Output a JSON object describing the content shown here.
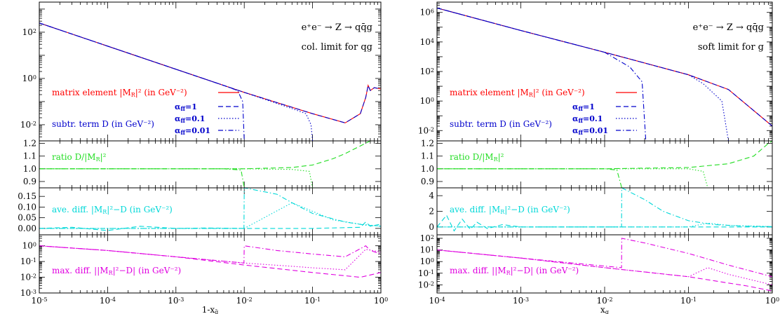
{
  "panels": [
    {
      "id": "left",
      "xlabel": "1-x",
      "xlabel_sub": "q̄",
      "xlim": [
        1e-05,
        1
      ],
      "x_ticks": [
        {
          "v": 1e-05,
          "l": "10",
          "e": "-5"
        },
        {
          "v": 0.0001,
          "l": "10",
          "e": "-4"
        },
        {
          "v": 0.001,
          "l": "10",
          "e": "-3"
        },
        {
          "v": 0.01,
          "l": "10",
          "e": "-2"
        },
        {
          "v": 0.1,
          "l": "10",
          "e": "-1"
        },
        {
          "v": 1,
          "l": "10",
          "e": "0"
        }
      ],
      "process": "e⁺e⁻ → Z → qq̄g",
      "limit": "col. limit for qg",
      "show_legend": true
    },
    {
      "id": "right",
      "xlabel": "x",
      "xlabel_sub": "g",
      "xlim": [
        0.0001,
        1
      ],
      "x_ticks": [
        {
          "v": 0.0001,
          "l": "10",
          "e": "-4"
        },
        {
          "v": 0.001,
          "l": "10",
          "e": "-3"
        },
        {
          "v": 0.01,
          "l": "10",
          "e": "-2"
        },
        {
          "v": 0.1,
          "l": "10",
          "e": "-1"
        },
        {
          "v": 1,
          "l": "10",
          "e": "0"
        }
      ],
      "process": "e⁺e⁻ → Z → qq̄g",
      "limit": "soft limit for g",
      "show_legend": true
    }
  ],
  "legend": {
    "matrix_element": "matrix element |M",
    "matrix_element_tail": "|² (in GeV⁻²)",
    "subtr_term": "subtr. term D (in GeV⁻²)",
    "alpha1": "=1",
    "alpha01": "=0.1",
    "alpha001": "=0.01",
    "ratio": "ratio D/|M",
    "ratio_tail": "|²",
    "avediff": "ave. diff. |M",
    "avediff_tail": "|²−D (in GeV⁻²)",
    "maxdiff": "max. diff. ||M",
    "maxdiff_tail": "|²−D| (in GeV⁻²)"
  },
  "colors": {
    "matrix": "#ff0000",
    "subtr": "#0000cc",
    "ratio": "#22dd22",
    "avediff": "#00d8d8",
    "maxdiff": "#e000e0"
  },
  "chart_data": [
    {
      "type": "line",
      "panel": "left-top",
      "yscale": "log",
      "ylim": [
        0.002,
        2000
      ],
      "y_ticks": [
        {
          "v": 0.01,
          "e": "-2"
        },
        {
          "v": 1,
          "e": "0"
        },
        {
          "v": 100,
          "e": "2"
        }
      ],
      "series": [
        {
          "name": "matrix element",
          "style": "solid",
          "color": "#ff0000",
          "x": [
            1e-05,
            0.0001,
            0.001,
            0.01,
            0.1,
            0.3,
            0.5,
            0.6,
            0.65,
            0.7,
            0.8,
            1
          ],
          "y": [
            250,
            25,
            2.5,
            0.25,
            0.03,
            0.012,
            0.03,
            0.15,
            0.5,
            0.3,
            0.4,
            0.35
          ]
        },
        {
          "name": "α=1",
          "style": "dash",
          "color": "#0000cc",
          "x": [
            1e-05,
            0.0001,
            0.001,
            0.01,
            0.1,
            0.3,
            0.5,
            0.6,
            0.65,
            0.7,
            0.8,
            1
          ],
          "y": [
            250,
            25,
            2.5,
            0.25,
            0.03,
            0.012,
            0.03,
            0.15,
            0.5,
            0.3,
            0.4,
            0.35
          ]
        },
        {
          "name": "α=0.1",
          "style": "dot",
          "color": "#0000cc",
          "x": [
            1e-05,
            0.0001,
            0.001,
            0.01,
            0.05,
            0.08,
            0.095,
            0.1
          ],
          "y": [
            250,
            25,
            2.5,
            0.25,
            0.05,
            0.03,
            0.01,
            0.002
          ]
        },
        {
          "name": "α=0.01",
          "style": "dashdot",
          "color": "#0000cc",
          "x": [
            1e-05,
            0.0001,
            0.001,
            0.005,
            0.008,
            0.0095,
            0.01
          ],
          "y": [
            250,
            25,
            2.5,
            0.5,
            0.3,
            0.1,
            0.002
          ]
        }
      ]
    },
    {
      "type": "line",
      "panel": "left-ratio",
      "ylim": [
        0.85,
        1.22
      ],
      "y_ticks": [
        {
          "v": 0.9,
          "l": "0.9"
        },
        {
          "v": 1.0,
          "l": "1.0"
        },
        {
          "v": 1.1,
          "l": "1.1"
        },
        {
          "v": 1.2,
          "l": "1.2"
        }
      ],
      "series": [
        {
          "name": "α=1",
          "style": "dash",
          "color": "#22dd22",
          "x": [
            1e-05,
            0.001,
            0.01,
            0.05,
            0.1,
            0.2,
            0.3,
            0.5,
            0.7,
            1
          ],
          "y": [
            1.0,
            1.0,
            1.0,
            1.01,
            1.03,
            1.08,
            1.12,
            1.18,
            1.22,
            1.22
          ]
        },
        {
          "name": "α=0.1",
          "style": "dot",
          "color": "#22dd22",
          "x": [
            1e-05,
            0.001,
            0.01,
            0.05,
            0.09,
            0.1
          ],
          "y": [
            1.0,
            1.0,
            1.0,
            0.995,
            0.98,
            0.85
          ]
        },
        {
          "name": "α=0.01",
          "style": "dashdot",
          "color": "#22dd22",
          "x": [
            1e-05,
            0.001,
            0.005,
            0.009,
            0.01
          ],
          "y": [
            1.0,
            1.0,
            1.0,
            0.99,
            0.85
          ]
        }
      ]
    },
    {
      "type": "line",
      "panel": "left-avediff",
      "ylim": [
        -0.03,
        0.19
      ],
      "y_ticks": [
        {
          "v": 0,
          "l": "0.00"
        },
        {
          "v": 0.05,
          "l": "0.05"
        },
        {
          "v": 0.1,
          "l": "0.10"
        },
        {
          "v": 0.15,
          "l": "0.15"
        }
      ],
      "series": [
        {
          "name": "α=1",
          "style": "dash",
          "color": "#00d8d8",
          "x": [
            1e-05,
            3e-05,
            0.0001,
            0.0003,
            0.001,
            0.003,
            0.01,
            0.1,
            0.5,
            0.6,
            0.7,
            1
          ],
          "y": [
            0,
            0.005,
            -0.01,
            0.01,
            0,
            0.002,
            0,
            0,
            0.005,
            0.03,
            0.01,
            0.02
          ]
        },
        {
          "name": "α=0.1",
          "style": "dot",
          "color": "#00d8d8",
          "x": [
            1e-05,
            0.001,
            0.01,
            0.05,
            0.1,
            0.2,
            0.5,
            1
          ],
          "y": [
            0,
            0,
            0,
            0.12,
            0.08,
            0.04,
            0.02,
            0.01
          ]
        },
        {
          "name": "α=0.01",
          "style": "dashdot",
          "color": "#00d8d8",
          "x": [
            1e-05,
            0.001,
            0.0099,
            0.01,
            0.03,
            0.05,
            0.1,
            0.3,
            0.6,
            1
          ],
          "y": [
            0,
            0,
            0,
            0.19,
            0.16,
            0.12,
            0.07,
            0.03,
            0.015,
            0.01
          ]
        }
      ]
    },
    {
      "type": "line",
      "panel": "left-maxdiff",
      "yscale": "log",
      "ylim": [
        0.001,
        5
      ],
      "y_ticks": [
        {
          "v": 0.001,
          "e": "-3"
        },
        {
          "v": 0.01,
          "e": "-2"
        },
        {
          "v": 0.1,
          "e": "-1"
        },
        {
          "v": 1,
          "e": "0"
        }
      ],
      "series": [
        {
          "name": "α=1",
          "style": "dash",
          "color": "#e000e0",
          "x": [
            1e-05,
            0.0001,
            0.001,
            0.01,
            0.1,
            0.5,
            1
          ],
          "y": [
            1.0,
            0.5,
            0.2,
            0.06,
            0.02,
            0.01,
            0.02
          ]
        },
        {
          "name": "α=0.1",
          "style": "dot",
          "color": "#e000e0",
          "x": [
            1e-05,
            0.0001,
            0.001,
            0.01,
            0.05,
            0.1,
            0.3,
            0.6,
            1
          ],
          "y": [
            1.0,
            0.5,
            0.2,
            0.08,
            0.05,
            0.04,
            0.03,
            0.6,
            0.4
          ]
        },
        {
          "name": "α=0.01",
          "style": "dashdot",
          "color": "#e000e0",
          "x": [
            1e-05,
            0.0001,
            0.001,
            0.0099,
            0.01,
            0.03,
            0.1,
            0.3,
            0.6,
            0.7,
            1
          ],
          "y": [
            1.0,
            0.5,
            0.2,
            0.08,
            1.0,
            0.5,
            0.3,
            0.2,
            1.0,
            0.5,
            0.3
          ]
        }
      ]
    },
    {
      "type": "line",
      "panel": "right-top",
      "yscale": "log",
      "ylim": [
        0.002,
        5000000
      ],
      "y_ticks": [
        {
          "v": 0.01,
          "e": "-2"
        },
        {
          "v": 1,
          "e": "0"
        },
        {
          "v": 100,
          "e": "2"
        },
        {
          "v": 10000,
          "e": "4"
        },
        {
          "v": 1000000,
          "e": "6"
        }
      ],
      "series": [
        {
          "name": "matrix element",
          "style": "solid",
          "color": "#ff0000",
          "x": [
            0.0001,
            0.001,
            0.01,
            0.1,
            0.3,
            1
          ],
          "y": [
            2000000,
            60000,
            2000,
            60,
            6,
            0.02
          ]
        },
        {
          "name": "α=1",
          "style": "dash",
          "color": "#0000cc",
          "x": [
            0.0001,
            0.001,
            0.01,
            0.1,
            0.3,
            1
          ],
          "y": [
            2000000,
            60000,
            2000,
            60,
            6,
            0.02
          ]
        },
        {
          "name": "α=0.1",
          "style": "dot",
          "color": "#0000cc",
          "x": [
            0.0001,
            0.001,
            0.01,
            0.1,
            0.15,
            0.25,
            0.3
          ],
          "y": [
            2000000,
            60000,
            2000,
            60,
            15,
            1,
            0.002
          ]
        },
        {
          "name": "α=0.01",
          "style": "dashdot",
          "color": "#0000cc",
          "x": [
            0.0001,
            0.001,
            0.01,
            0.02,
            0.028,
            0.031
          ],
          "y": [
            2000000,
            60000,
            2000,
            200,
            20,
            0.002
          ]
        }
      ]
    },
    {
      "type": "line",
      "panel": "right-ratio",
      "ylim": [
        0.85,
        1.22
      ],
      "y_ticks": [
        {
          "v": 0.9,
          "l": "0.9"
        },
        {
          "v": 1.0,
          "l": "1.0"
        },
        {
          "v": 1.1,
          "l": "1.1"
        },
        {
          "v": 1.2,
          "l": "1.2"
        }
      ],
      "series": [
        {
          "name": "α=1",
          "style": "dash",
          "color": "#22dd22",
          "x": [
            0.0001,
            0.001,
            0.01,
            0.1,
            0.3,
            0.6,
            0.9,
            1
          ],
          "y": [
            1.0,
            1.0,
            1.0,
            1.01,
            1.04,
            1.1,
            1.2,
            1.22
          ]
        },
        {
          "name": "α=0.1",
          "style": "dot",
          "color": "#22dd22",
          "x": [
            0.0001,
            0.001,
            0.01,
            0.1,
            0.15,
            0.17
          ],
          "y": [
            1.0,
            1.0,
            1.0,
            1.0,
            0.98,
            0.85
          ]
        },
        {
          "name": "α=0.01",
          "style": "dashdot",
          "color": "#22dd22",
          "x": [
            0.0001,
            0.001,
            0.01,
            0.014,
            0.016
          ],
          "y": [
            1.0,
            1.0,
            1.0,
            0.99,
            0.85
          ]
        }
      ]
    },
    {
      "type": "line",
      "panel": "right-avediff",
      "ylim": [
        -1,
        5
      ],
      "y_ticks": [
        {
          "v": 0,
          "l": "0"
        },
        {
          "v": 2,
          "l": "2"
        },
        {
          "v": 4,
          "l": "4"
        }
      ],
      "series": [
        {
          "name": "α=1",
          "style": "dash",
          "color": "#00d8d8",
          "x": [
            0.0001,
            0.00013,
            0.00016,
            0.0002,
            0.00025,
            0.0003,
            0.0004,
            0.0006,
            0.001,
            0.01,
            0.1,
            1
          ],
          "y": [
            0,
            1.5,
            -0.5,
            1,
            -0.3,
            0.6,
            -0.2,
            0.3,
            0,
            0,
            0,
            0
          ]
        },
        {
          "name": "α=0.1",
          "style": "dot",
          "color": "#00d8d8",
          "x": [
            0.0001,
            0.001,
            0.01,
            0.1,
            0.17,
            0.3,
            1
          ],
          "y": [
            0,
            0,
            0,
            0,
            0.5,
            0.2,
            0.05
          ]
        },
        {
          "name": "α=0.01",
          "style": "dashdot",
          "color": "#00d8d8",
          "x": [
            0.0001,
            0.001,
            0.0159,
            0.016,
            0.03,
            0.05,
            0.1,
            0.2,
            0.5,
            1
          ],
          "y": [
            0,
            0,
            0,
            5,
            3.5,
            2,
            0.8,
            0.3,
            0.1,
            0.05
          ]
        }
      ]
    },
    {
      "type": "line",
      "panel": "right-maxdiff",
      "yscale": "log",
      "ylim": [
        0.002,
        200
      ],
      "y_ticks": [
        {
          "v": 0.01,
          "e": "-2"
        },
        {
          "v": 0.1,
          "e": "-1"
        },
        {
          "v": 1,
          "e": "0"
        },
        {
          "v": 10,
          "e": "1"
        },
        {
          "v": 100,
          "e": "2"
        }
      ],
      "series": [
        {
          "name": "α=1",
          "style": "dash",
          "color": "#e000e0",
          "x": [
            0.0001,
            0.001,
            0.01,
            0.1,
            0.5,
            1
          ],
          "y": [
            10,
            2,
            0.3,
            0.05,
            0.008,
            0.003
          ]
        },
        {
          "name": "α=0.1",
          "style": "dot",
          "color": "#e000e0",
          "x": [
            0.0001,
            0.001,
            0.01,
            0.1,
            0.17,
            0.3,
            1
          ],
          "y": [
            10,
            2,
            0.3,
            0.05,
            0.3,
            0.08,
            0.01
          ]
        },
        {
          "name": "α=0.01",
          "style": "dashdot",
          "color": "#e000e0",
          "x": [
            0.0001,
            0.001,
            0.0159,
            0.016,
            0.03,
            0.1,
            0.3,
            1
          ],
          "y": [
            10,
            2,
            0.3,
            100,
            40,
            5,
            0.5,
            0.05
          ]
        }
      ]
    }
  ]
}
